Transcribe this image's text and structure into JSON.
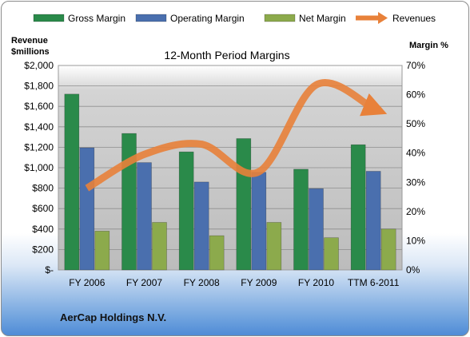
{
  "chart_data": {
    "type": "bar",
    "title": "12-Month Period Margins",
    "categories": [
      "FY 2006",
      "FY 2007",
      "FY 2008",
      "FY 2009",
      "FY 2010",
      "TTM 6-2011"
    ],
    "series": [
      {
        "name": "Gross Margin",
        "axis": "left",
        "values": [
          1720,
          1335,
          1155,
          1285,
          985,
          1225
        ],
        "color": "#2a8a4a"
      },
      {
        "name": "Operating Margin",
        "axis": "left",
        "values": [
          1195,
          1050,
          860,
          955,
          795,
          965
        ],
        "color": "#4a6fae"
      },
      {
        "name": "Net Margin",
        "axis": "left",
        "values": [
          380,
          465,
          335,
          465,
          315,
          400
        ],
        "color": "#8caa4c"
      }
    ],
    "trend_series": {
      "name": "Revenues",
      "type": "line",
      "axis": "left",
      "values": [
        800,
        1130,
        1230,
        960,
        1810,
        1580
      ],
      "color": "#e8813a"
    },
    "ylabel": "Revenue\n$millions",
    "y2label": "Margin %",
    "ylim": [
      0,
      2000
    ],
    "y2lim": [
      0,
      70
    ],
    "yticks": [
      "$-",
      "$200",
      "$400",
      "$600",
      "$800",
      "$1,000",
      "$1,200",
      "$1,400",
      "$1,600",
      "$1,800",
      "$2,000"
    ],
    "y2ticks": [
      "0%",
      "10%",
      "20%",
      "30%",
      "40%",
      "50%",
      "60%",
      "70%"
    ],
    "legend": [
      {
        "label": "Gross Margin",
        "color": "#2a8a4a",
        "kind": "bar"
      },
      {
        "label": "Operating Margin",
        "color": "#4a6fae",
        "kind": "bar"
      },
      {
        "label": "Net Margin",
        "color": "#8caa4c",
        "kind": "bar"
      },
      {
        "label": "Revenues",
        "color": "#e8813a",
        "kind": "arrow"
      }
    ],
    "legend_position": "top",
    "grid": true,
    "plot_background": "#c8c8c8"
  },
  "footer": {
    "company": "AerCap Holdings N.V."
  }
}
